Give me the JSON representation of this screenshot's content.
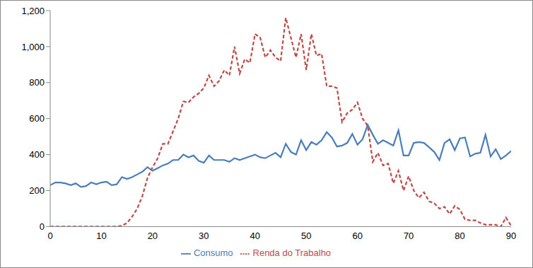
{
  "chart_data": {
    "type": "line",
    "x": [
      0,
      1,
      2,
      3,
      4,
      5,
      6,
      7,
      8,
      9,
      10,
      11,
      12,
      13,
      14,
      15,
      16,
      17,
      18,
      19,
      20,
      21,
      22,
      23,
      24,
      25,
      26,
      27,
      28,
      29,
      30,
      31,
      32,
      33,
      34,
      35,
      36,
      37,
      38,
      39,
      40,
      41,
      42,
      43,
      44,
      45,
      46,
      47,
      48,
      49,
      50,
      51,
      52,
      53,
      54,
      55,
      56,
      57,
      58,
      59,
      60,
      61,
      62,
      63,
      64,
      65,
      66,
      67,
      68,
      69,
      70,
      71,
      72,
      73,
      74,
      75,
      76,
      77,
      78,
      79,
      80,
      81,
      82,
      83,
      84,
      85,
      86,
      87,
      88,
      89,
      90
    ],
    "series": [
      {
        "name": "Consumo",
        "color": "#4a7ebb",
        "line_style": "solid",
        "values": [
          230,
          245,
          245,
          240,
          230,
          240,
          220,
          225,
          245,
          235,
          245,
          250,
          230,
          235,
          275,
          265,
          275,
          290,
          305,
          330,
          310,
          325,
          340,
          350,
          370,
          370,
          400,
          385,
          395,
          365,
          355,
          395,
          370,
          370,
          370,
          360,
          380,
          370,
          380,
          390,
          400,
          385,
          380,
          395,
          410,
          385,
          460,
          415,
          400,
          480,
          425,
          470,
          455,
          480,
          525,
          495,
          445,
          450,
          465,
          515,
          455,
          485,
          565,
          510,
          460,
          480,
          465,
          450,
          535,
          395,
          395,
          465,
          470,
          465,
          440,
          415,
          370,
          465,
          485,
          425,
          490,
          495,
          390,
          405,
          410,
          510,
          390,
          430,
          375,
          395,
          420
        ]
      },
      {
        "name": "Renda do Trabalho",
        "color": "#be4b48",
        "line_style": "dashed",
        "values": [
          0,
          0,
          0,
          0,
          0,
          0,
          0,
          0,
          0,
          0,
          0,
          0,
          0,
          0,
          5,
          20,
          55,
          100,
          170,
          270,
          330,
          380,
          460,
          460,
          530,
          600,
          695,
          690,
          720,
          740,
          770,
          840,
          780,
          810,
          870,
          840,
          1000,
          850,
          930,
          910,
          1070,
          1050,
          940,
          980,
          940,
          920,
          1160,
          1050,
          940,
          1070,
          870,
          1070,
          950,
          960,
          780,
          780,
          770,
          580,
          630,
          650,
          690,
          600,
          560,
          360,
          410,
          340,
          350,
          240,
          310,
          200,
          280,
          200,
          160,
          190,
          140,
          130,
          100,
          110,
          70,
          115,
          95,
          40,
          35,
          35,
          20,
          10,
          10,
          10,
          0,
          50,
          5
        ]
      }
    ],
    "xlim": [
      0,
      90
    ],
    "xticks": [
      0,
      10,
      20,
      30,
      40,
      50,
      60,
      70,
      80,
      90
    ],
    "ylim": [
      0,
      1200
    ],
    "yticks": [
      0,
      200,
      400,
      600,
      800,
      {
        "value": 1000,
        "label": "1,000"
      },
      {
        "value": 1200,
        "label": "1,200"
      }
    ],
    "grid": false,
    "legend": "bottom"
  }
}
